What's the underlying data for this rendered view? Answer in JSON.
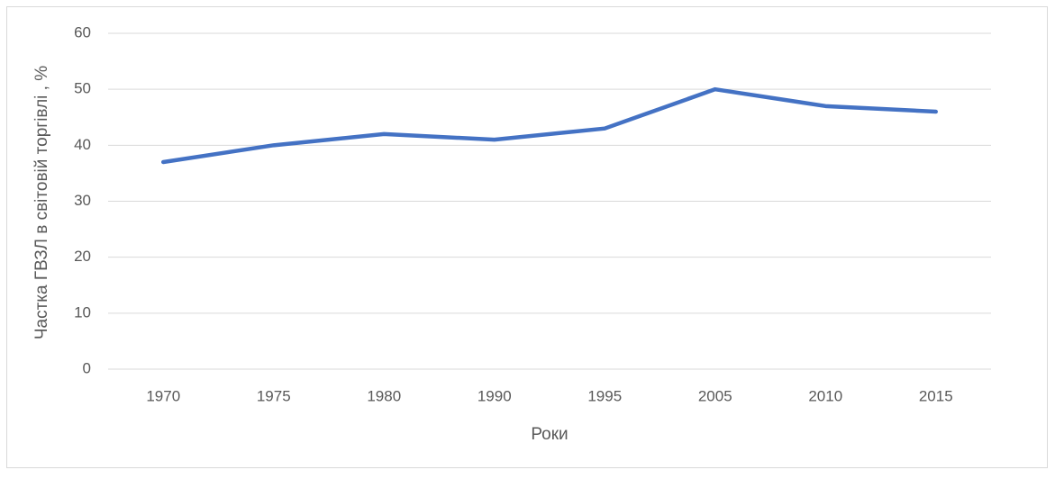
{
  "chart_data": {
    "type": "line",
    "categories": [
      "1970",
      "1975",
      "1980",
      "1990",
      "1995",
      "2005",
      "2010",
      "2015"
    ],
    "series": [
      {
        "color": "#4472c4",
        "values": [
          37,
          40,
          42,
          41,
          43,
          50,
          47,
          46
        ]
      }
    ],
    "xlabel": "Роки",
    "ylabel": "Частка ГВЗЛ  в світовій торгівлі , %",
    "ylim": [
      0,
      60
    ],
    "yticks": [
      0,
      10,
      20,
      30,
      40,
      50,
      60
    ],
    "grid": true
  }
}
